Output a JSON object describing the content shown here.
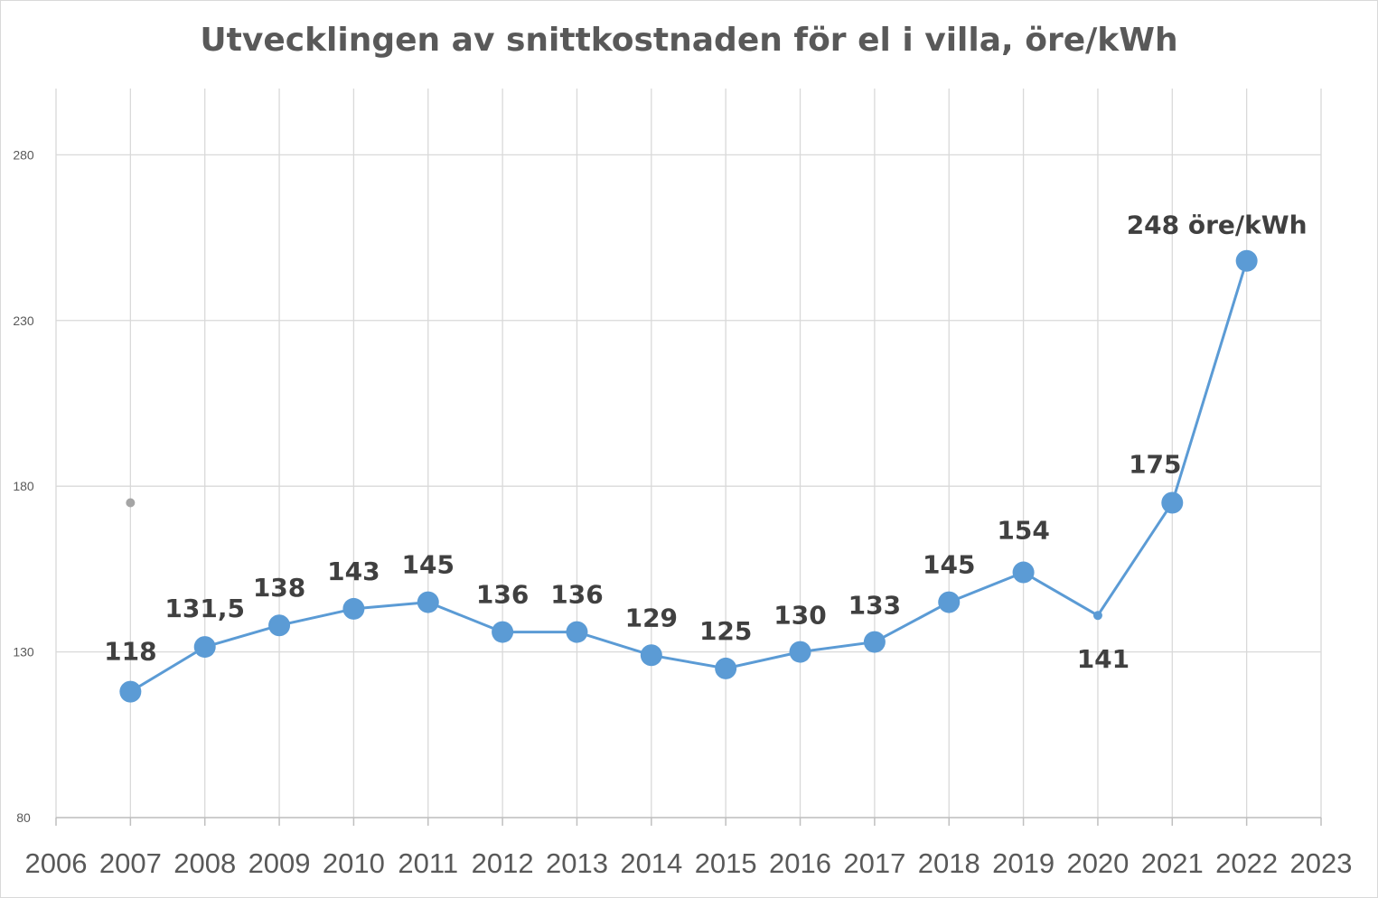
{
  "chart_data": {
    "type": "line",
    "title": "Utvecklingen av snittkostnaden för el i villa, öre/kWh",
    "xlabel": "",
    "ylabel": "",
    "xlim": [
      2006,
      2023
    ],
    "ylim": [
      80,
      300
    ],
    "x_ticks": [
      "2006",
      "2007",
      "2008",
      "2009",
      "2010",
      "2011",
      "2012",
      "2013",
      "2014",
      "2015",
      "2016",
      "2017",
      "2018",
      "2019",
      "2020",
      "2021",
      "2022",
      "2023"
    ],
    "y_ticks": [
      "80",
      "130",
      "180",
      "230",
      "280"
    ],
    "grid": true,
    "legend": "none",
    "colors": {
      "series": "#5b9bd5",
      "extra_point": "#a5a5a5",
      "gridline": "#d9d9d9",
      "text": "#595959"
    },
    "series": [
      {
        "x": [
          2007,
          2008,
          2009,
          2010,
          2011,
          2012,
          2013,
          2014,
          2015,
          2016,
          2017,
          2018,
          2019,
          2020,
          2021,
          2022
        ],
        "values": [
          118,
          131.5,
          138,
          143,
          145,
          136,
          136,
          129,
          125,
          130,
          133,
          145,
          154,
          141,
          175,
          248
        ],
        "labels": [
          "118",
          "131,5",
          "138",
          "143",
          "145",
          "136",
          "136",
          "129",
          "125",
          "130",
          "133",
          "145",
          "154",
          "141",
          "175",
          "248 öre/kWh"
        ]
      }
    ],
    "extra_points": [
      {
        "x": 2007,
        "y": 175
      }
    ]
  }
}
